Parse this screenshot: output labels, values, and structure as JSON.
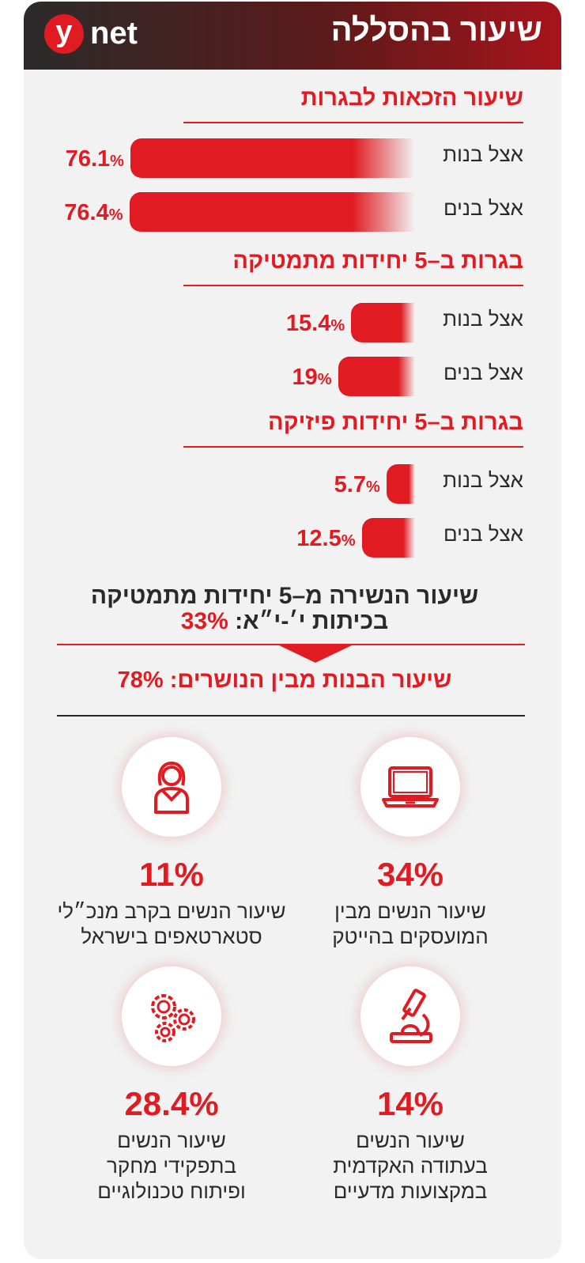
{
  "header": {
    "title": "שיעור בהסללה",
    "logo_y": "y",
    "logo_net": "net"
  },
  "chart_data": {
    "type": "bar",
    "sections": [
      {
        "title": "שיעור הזכאות לבגרות",
        "rows": [
          {
            "label": "אצל בנות",
            "value": 76.1,
            "value_text": "76.1"
          },
          {
            "label": "אצל בנים",
            "value": 76.4,
            "value_text": "76.4"
          }
        ]
      },
      {
        "title": "בגרות ב–5 יחידות מתמטיקה",
        "rows": [
          {
            "label": "אצל בנות",
            "value": 15.4,
            "value_text": "15.4"
          },
          {
            "label": "אצל בנים",
            "value": 19,
            "value_text": "19"
          }
        ]
      },
      {
        "title": "בגרות ב–5 יחידות פיזיקה",
        "rows": [
          {
            "label": "אצל בנות",
            "value": 5.7,
            "value_text": "5.7"
          },
          {
            "label": "אצל בנים",
            "value": 12.5,
            "value_text": "12.5"
          }
        ]
      }
    ],
    "percent_symbol": "%"
  },
  "dropout": {
    "line1": "שיעור הנשירה מ–5 יחידות מתמטיקה",
    "line2_text": "בכיתות י׳-י״א:",
    "line2_value": "33%",
    "girls_text": "שיעור הבנות מבין הנושרים:",
    "girls_value": "78%"
  },
  "stats": [
    {
      "icon": "laptop-icon",
      "value": "34%",
      "caption": "שיעור הנשים מבין\nהמועסקים בהייטק"
    },
    {
      "icon": "woman-icon",
      "value": "11%",
      "caption": "שיעור הנשים בקרב מנכ״לי\nסטארטאפים בישראל"
    },
    {
      "icon": "microscope-icon",
      "value": "14%",
      "caption": "שיעור הנשים\nבעתודה האקדמית\nבמקצועות מדעיים"
    },
    {
      "icon": "gears-icon",
      "value": "28.4%",
      "caption": "שיעור הנשים\nבתפקידי מחקר\nופיתוח טכנולוגיים"
    }
  ],
  "colors": {
    "accent": "#e01b22",
    "dark": "#2b2b2b",
    "card": "#f2f2f2"
  }
}
